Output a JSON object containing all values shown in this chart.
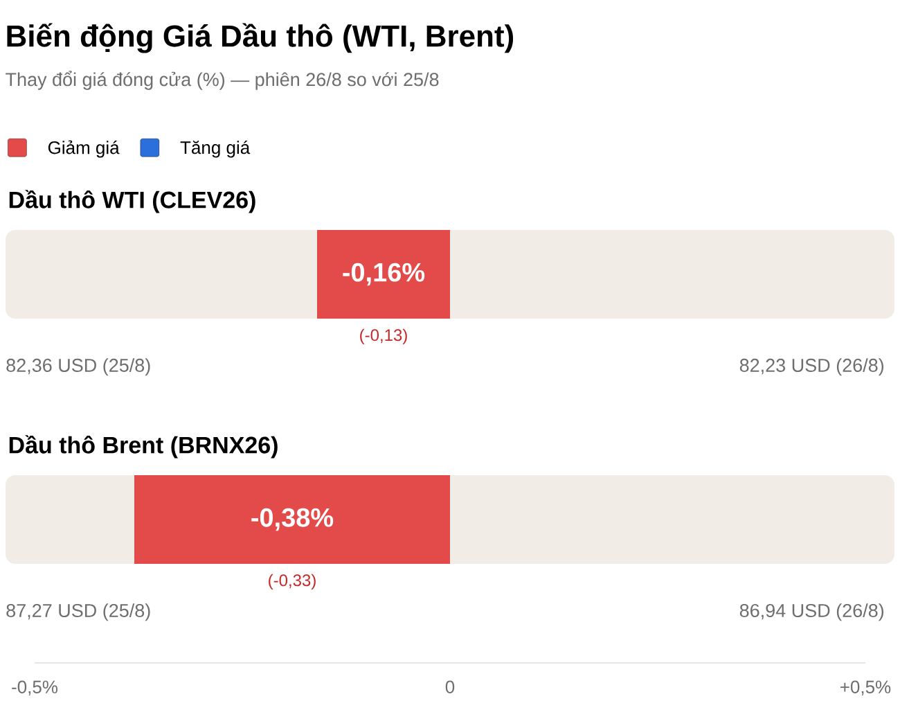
{
  "chart_data": {
    "type": "bar",
    "orientation": "horizontal",
    "title": "Biến động Giá Dầu thô (WTI, Brent)",
    "subtitle": "Thay đổi giá đóng cửa (%) — phiên 26/8 so với 25/8",
    "categories": [
      "Dầu thô WTI (CLEV26)",
      "Dầu thô Brent (BRNX26)"
    ],
    "series": [
      {
        "name": "Giảm giá",
        "color": "#e34a4a",
        "values": [
          -0.16,
          -0.38
        ],
        "value_labels": [
          "-0,16%",
          "-0,38%"
        ]
      },
      {
        "name": "Tăng giá",
        "color": "#2a6fdb",
        "values": [
          null,
          null
        ]
      }
    ],
    "xlim": [
      -0.5,
      0.5
    ],
    "xticks": [
      {
        "value": -0.5,
        "label": "-0,5%"
      },
      0,
      {
        "value": 0.5,
        "label": "+0,5%"
      }
    ],
    "legend": "top left",
    "annotations": [
      "(-0,13)",
      "82,36 USD (25/8)",
      "82,23 USD (26/8)",
      "(-0,33)",
      "87,27 USD (25/8)",
      "86,94 USD (26/8)"
    ]
  }
}
